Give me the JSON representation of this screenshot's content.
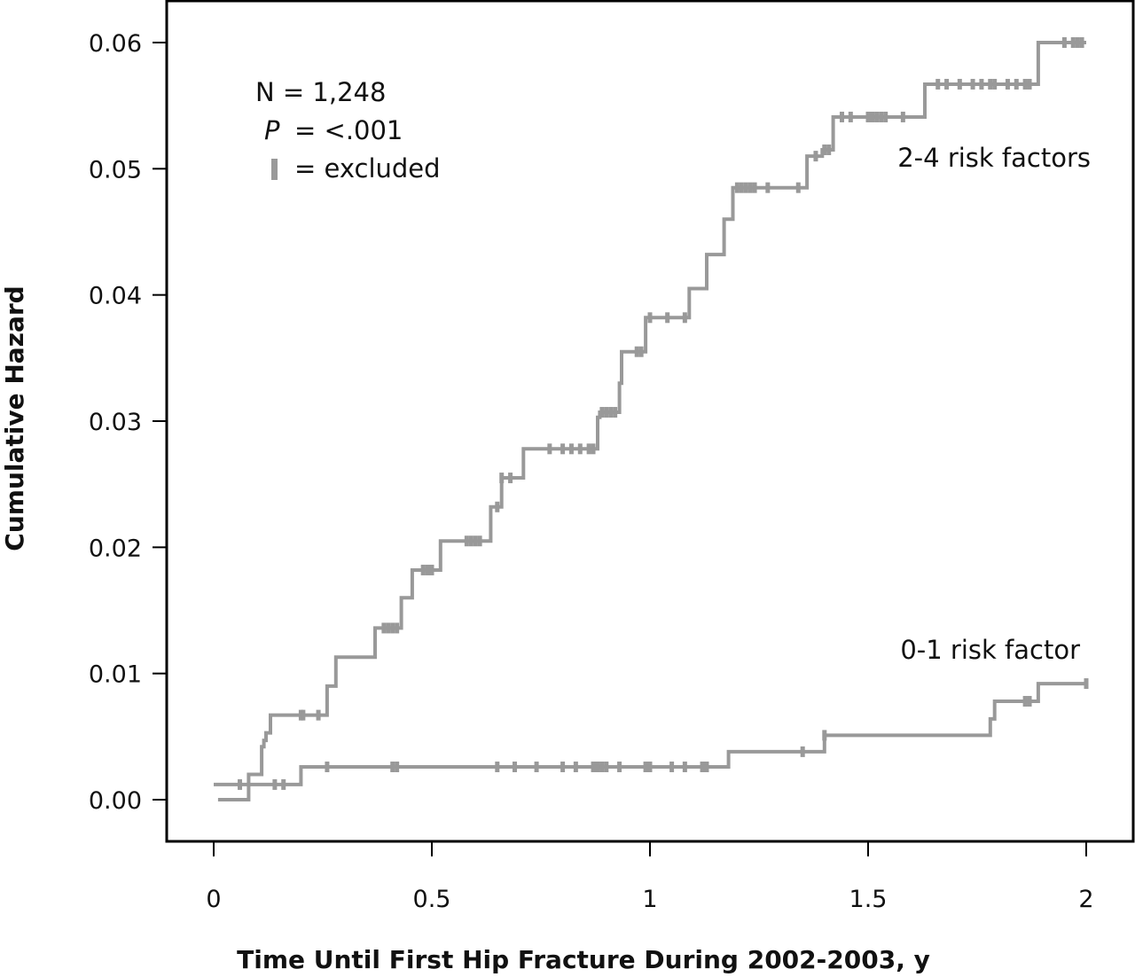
{
  "chart_data": {
    "type": "line",
    "step": true,
    "title": "",
    "xlabel": "Time Until First Hip Fracture During 2002-2003, y",
    "ylabel": "Cumulative Hazard",
    "xlim": [
      0,
      2
    ],
    "ylim": [
      0,
      0.06
    ],
    "x_ticks": [
      0,
      0.5,
      1,
      1.5,
      2
    ],
    "x_tick_labels": [
      "0",
      "0.5",
      "1",
      "1.5",
      "2"
    ],
    "y_ticks": [
      0,
      0.01,
      0.02,
      0.03,
      0.04,
      0.05,
      0.06
    ],
    "y_tick_labels": [
      "0.00",
      "0.01",
      "0.02",
      "0.03",
      "0.04",
      "0.05",
      "0.06"
    ],
    "grid": false,
    "color": "#999999",
    "annotations": {
      "n_line": "N  =  1,248",
      "p_symbol": "P",
      "p_value": "=  <.001",
      "censor_text": "=  excluded"
    },
    "series": [
      {
        "name": "2-4 risk factors",
        "x": [
          0.01,
          0.08,
          0.11,
          0.115,
          0.12,
          0.13,
          0.26,
          0.265,
          0.28,
          0.37,
          0.39,
          0.43,
          0.455,
          0.48,
          0.52,
          0.56,
          0.61,
          0.635,
          0.66,
          0.71,
          0.88,
          0.885,
          0.93,
          0.935,
          0.96,
          0.99,
          1.09,
          1.13,
          1.17,
          1.19,
          1.36,
          1.395,
          1.42,
          1.63,
          1.88,
          1.89,
          2.0
        ],
        "y": [
          0.0,
          0.002,
          0.0042,
          0.0047,
          0.0053,
          0.0067,
          0.009,
          0.009,
          0.0113,
          0.0136,
          0.0136,
          0.016,
          0.0182,
          0.0182,
          0.0205,
          0.0205,
          0.0205,
          0.0232,
          0.0255,
          0.0278,
          0.0303,
          0.0307,
          0.033,
          0.0355,
          0.0355,
          0.0382,
          0.0405,
          0.0432,
          0.046,
          0.0485,
          0.051,
          0.0515,
          0.0541,
          0.0567,
          0.0567,
          0.06,
          0.06
        ],
        "censor_x": [
          0.2,
          0.205,
          0.24,
          0.39,
          0.4,
          0.41,
          0.42,
          0.48,
          0.49,
          0.5,
          0.58,
          0.59,
          0.6,
          0.61,
          0.65,
          0.66,
          0.68,
          0.77,
          0.8,
          0.82,
          0.84,
          0.86,
          0.87,
          0.89,
          0.9,
          0.91,
          0.92,
          0.97,
          0.98,
          1.0,
          1.04,
          1.08,
          1.2,
          1.21,
          1.22,
          1.23,
          1.24,
          1.27,
          1.34,
          1.38,
          1.4,
          1.41,
          1.44,
          1.46,
          1.5,
          1.51,
          1.52,
          1.53,
          1.54,
          1.58,
          1.66,
          1.68,
          1.71,
          1.74,
          1.76,
          1.78,
          1.79,
          1.82,
          1.84,
          1.86,
          1.87,
          1.95,
          1.97,
          1.98,
          1.99
        ]
      },
      {
        "name": "0-1 risk factor",
        "x": [
          0.0,
          0.06,
          0.19,
          0.2,
          1.17,
          1.18,
          1.39,
          1.4,
          1.77,
          1.78,
          1.79,
          1.88,
          1.89,
          2.0
        ],
        "y": [
          0.0012,
          0.0012,
          0.0012,
          0.0026,
          0.0026,
          0.0038,
          0.0038,
          0.0051,
          0.0051,
          0.0064,
          0.0078,
          0.0078,
          0.0092,
          0.0092
        ],
        "censor_x": [
          0.06,
          0.14,
          0.16,
          0.26,
          0.41,
          0.42,
          0.65,
          0.69,
          0.74,
          0.8,
          0.83,
          0.87,
          0.88,
          0.89,
          0.9,
          0.93,
          0.99,
          1.0,
          1.05,
          1.08,
          1.12,
          1.13,
          1.35,
          1.4,
          1.86,
          1.87,
          2.0
        ]
      }
    ]
  }
}
